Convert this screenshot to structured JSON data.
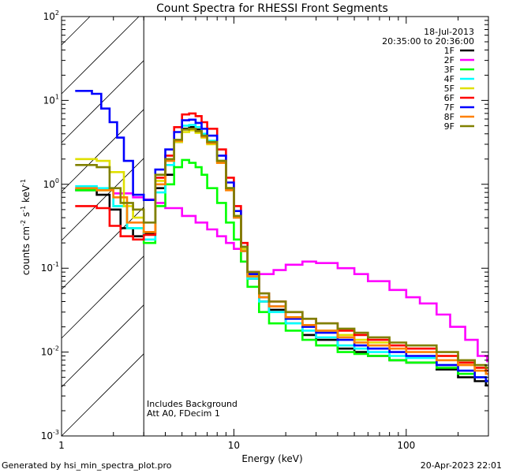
{
  "chart_data": {
    "type": "line",
    "title": "Count Spectra for RHESSI Front Segments",
    "xlabel": "Energy (keV)",
    "ylabel_parts": [
      "counts cm",
      "-2",
      " s",
      "-1",
      " keV",
      "-1"
    ],
    "xscale": "log",
    "yscale": "log",
    "xlim": [
      1,
      300
    ],
    "ylim": [
      0.001,
      100
    ],
    "x_major_ticks": [
      1,
      10,
      100
    ],
    "x_tick_labels": [
      "1",
      "10",
      "100"
    ],
    "y_major_ticks": [
      0.001,
      0.01,
      0.1,
      1,
      10,
      100
    ],
    "y_tick_labels": [
      {
        "base": "10",
        "exp": "-3"
      },
      {
        "base": "10",
        "exp": "-2"
      },
      {
        "base": "10",
        "exp": "-1"
      },
      {
        "base": "10",
        "exp": "0"
      },
      {
        "base": "10",
        "exp": "1"
      },
      {
        "base": "10",
        "exp": "2"
      }
    ],
    "date": "18-Jul-2013",
    "time_range": "20:35:00 to 20:36:00",
    "attenuator_cut_kev": 3,
    "annotations": [
      "Includes Background",
      "Att A0, FDecim 1"
    ],
    "legend_position": "top-right",
    "series": [
      {
        "name": "1F",
        "color": "#000000",
        "points": [
          [
            1.2,
            0.85
          ],
          [
            1.6,
            0.75
          ],
          [
            1.9,
            0.5
          ],
          [
            2.2,
            0.3
          ],
          [
            2.6,
            0.24
          ],
          [
            3,
            0.26
          ],
          [
            3.5,
            0.9
          ],
          [
            4,
            1.3
          ],
          [
            4.5,
            3.2
          ],
          [
            5,
            4.6
          ],
          [
            5.5,
            4.8
          ],
          [
            6,
            4.5
          ],
          [
            6.5,
            3.8
          ],
          [
            7,
            3.2
          ],
          [
            8,
            1.9
          ],
          [
            9,
            0.9
          ],
          [
            10,
            0.4
          ],
          [
            11,
            0.16
          ],
          [
            12,
            0.075
          ],
          [
            14,
            0.04
          ],
          [
            16,
            0.032
          ],
          [
            20,
            0.022
          ],
          [
            25,
            0.016
          ],
          [
            30,
            0.014
          ],
          [
            40,
            0.011
          ],
          [
            50,
            0.01
          ],
          [
            60,
            0.009
          ],
          [
            80,
            0.008
          ],
          [
            100,
            0.0075
          ],
          [
            150,
            0.0062
          ],
          [
            200,
            0.005
          ],
          [
            250,
            0.0045
          ],
          [
            290,
            0.004
          ]
        ]
      },
      {
        "name": "2F",
        "color": "#ff00ff",
        "points": [
          [
            1.2,
            0.88
          ],
          [
            1.6,
            0.87
          ],
          [
            2,
            0.78
          ],
          [
            2.6,
            0.7
          ],
          [
            3,
            0.66
          ],
          [
            3.5,
            0.6
          ],
          [
            4,
            0.52
          ],
          [
            5,
            0.42
          ],
          [
            6,
            0.35
          ],
          [
            7,
            0.29
          ],
          [
            8,
            0.24
          ],
          [
            9,
            0.2
          ],
          [
            10,
            0.17
          ],
          [
            11,
            0.12
          ],
          [
            12,
            0.09
          ],
          [
            14,
            0.085
          ],
          [
            17,
            0.095
          ],
          [
            20,
            0.11
          ],
          [
            25,
            0.12
          ],
          [
            30,
            0.115
          ],
          [
            40,
            0.1
          ],
          [
            50,
            0.085
          ],
          [
            60,
            0.07
          ],
          [
            80,
            0.055
          ],
          [
            100,
            0.045
          ],
          [
            120,
            0.038
          ],
          [
            150,
            0.028
          ],
          [
            180,
            0.02
          ],
          [
            220,
            0.014
          ],
          [
            260,
            0.009
          ],
          [
            295,
            0.0078
          ]
        ]
      },
      {
        "name": "3F",
        "color": "#00ff00",
        "points": [
          [
            1.2,
            0.85
          ],
          [
            1.6,
            0.85
          ],
          [
            2,
            0.55
          ],
          [
            2.4,
            0.3
          ],
          [
            3,
            0.2
          ],
          [
            3.5,
            0.55
          ],
          [
            4,
            1.0
          ],
          [
            4.5,
            1.6
          ],
          [
            5,
            1.95
          ],
          [
            5.5,
            1.8
          ],
          [
            6,
            1.6
          ],
          [
            6.5,
            1.3
          ],
          [
            7,
            0.9
          ],
          [
            8,
            0.6
          ],
          [
            9,
            0.35
          ],
          [
            10,
            0.22
          ],
          [
            11,
            0.12
          ],
          [
            12,
            0.06
          ],
          [
            14,
            0.03
          ],
          [
            16,
            0.022
          ],
          [
            20,
            0.018
          ],
          [
            25,
            0.014
          ],
          [
            30,
            0.012
          ],
          [
            40,
            0.01
          ],
          [
            50,
            0.0095
          ],
          [
            60,
            0.009
          ],
          [
            80,
            0.008
          ],
          [
            100,
            0.0075
          ],
          [
            150,
            0.0065
          ],
          [
            200,
            0.0055
          ],
          [
            250,
            0.005
          ],
          [
            290,
            0.0045
          ]
        ]
      },
      {
        "name": "4F",
        "color": "#00ffff",
        "points": [
          [
            1.2,
            0.95
          ],
          [
            1.6,
            0.9
          ],
          [
            2,
            0.55
          ],
          [
            2.4,
            0.3
          ],
          [
            3,
            0.22
          ],
          [
            3.5,
            0.8
          ],
          [
            4,
            1.7
          ],
          [
            4.5,
            3.4
          ],
          [
            5,
            5.0
          ],
          [
            5.5,
            5.1
          ],
          [
            6,
            4.8
          ],
          [
            6.5,
            4.0
          ],
          [
            7,
            3.3
          ],
          [
            8,
            1.9
          ],
          [
            9,
            0.9
          ],
          [
            10,
            0.4
          ],
          [
            11,
            0.16
          ],
          [
            12,
            0.075
          ],
          [
            14,
            0.04
          ],
          [
            16,
            0.03
          ],
          [
            20,
            0.022
          ],
          [
            25,
            0.018
          ],
          [
            30,
            0.015
          ],
          [
            40,
            0.012
          ],
          [
            50,
            0.011
          ],
          [
            60,
            0.01
          ],
          [
            80,
            0.009
          ],
          [
            100,
            0.0085
          ],
          [
            150,
            0.007
          ],
          [
            200,
            0.006
          ],
          [
            250,
            0.005
          ],
          [
            290,
            0.0045
          ]
        ]
      },
      {
        "name": "5F",
        "color": "#e0e000",
        "points": [
          [
            1.2,
            2.0
          ],
          [
            1.6,
            1.9
          ],
          [
            1.9,
            1.4
          ],
          [
            2.3,
            0.55
          ],
          [
            2.6,
            0.4
          ],
          [
            3,
            0.27
          ],
          [
            3.5,
            1.1
          ],
          [
            4,
            2.0
          ],
          [
            4.5,
            3.2
          ],
          [
            5,
            4.2
          ],
          [
            5.5,
            4.4
          ],
          [
            6,
            4.1
          ],
          [
            6.5,
            3.6
          ],
          [
            7,
            3.0
          ],
          [
            8,
            1.8
          ],
          [
            9,
            0.9
          ],
          [
            10,
            0.42
          ],
          [
            11,
            0.17
          ],
          [
            12,
            0.08
          ],
          [
            14,
            0.045
          ],
          [
            16,
            0.035
          ],
          [
            20,
            0.026
          ],
          [
            25,
            0.021
          ],
          [
            30,
            0.018
          ],
          [
            40,
            0.016
          ],
          [
            50,
            0.014
          ],
          [
            60,
            0.013
          ],
          [
            80,
            0.012
          ],
          [
            100,
            0.011
          ],
          [
            150,
            0.009
          ],
          [
            200,
            0.0075
          ],
          [
            250,
            0.0065
          ],
          [
            290,
            0.006
          ]
        ]
      },
      {
        "name": "6F",
        "color": "#ff0000",
        "points": [
          [
            1.2,
            0.55
          ],
          [
            1.6,
            0.52
          ],
          [
            1.9,
            0.32
          ],
          [
            2.2,
            0.24
          ],
          [
            2.6,
            0.22
          ],
          [
            3,
            0.25
          ],
          [
            3.5,
            1.2
          ],
          [
            4,
            2.2
          ],
          [
            4.5,
            4.8
          ],
          [
            5,
            6.8
          ],
          [
            5.5,
            7.0
          ],
          [
            6,
            6.5
          ],
          [
            6.5,
            5.5
          ],
          [
            7,
            4.6
          ],
          [
            8,
            2.6
          ],
          [
            9,
            1.2
          ],
          [
            10,
            0.55
          ],
          [
            11,
            0.2
          ],
          [
            12,
            0.09
          ],
          [
            14,
            0.05
          ],
          [
            16,
            0.04
          ],
          [
            20,
            0.03
          ],
          [
            25,
            0.025
          ],
          [
            30,
            0.022
          ],
          [
            40,
            0.018
          ],
          [
            50,
            0.016
          ],
          [
            60,
            0.014
          ],
          [
            80,
            0.012
          ],
          [
            100,
            0.011
          ],
          [
            150,
            0.009
          ],
          [
            200,
            0.0075
          ],
          [
            250,
            0.0065
          ],
          [
            290,
            0.006
          ]
        ]
      },
      {
        "name": "7F",
        "color": "#0000ff",
        "points": [
          [
            1.2,
            13
          ],
          [
            1.5,
            12
          ],
          [
            1.7,
            8
          ],
          [
            1.9,
            5.5
          ],
          [
            2.1,
            3.6
          ],
          [
            2.3,
            1.9
          ],
          [
            2.6,
            0.75
          ],
          [
            3,
            0.65
          ],
          [
            3.5,
            1.5
          ],
          [
            4,
            2.6
          ],
          [
            4.5,
            4.2
          ],
          [
            5,
            5.8
          ],
          [
            5.5,
            5.9
          ],
          [
            6,
            5.4
          ],
          [
            6.5,
            4.6
          ],
          [
            7,
            3.8
          ],
          [
            8,
            2.2
          ],
          [
            9,
            1.05
          ],
          [
            10,
            0.48
          ],
          [
            11,
            0.18
          ],
          [
            12,
            0.085
          ],
          [
            14,
            0.045
          ],
          [
            16,
            0.035
          ],
          [
            20,
            0.025
          ],
          [
            25,
            0.02
          ],
          [
            30,
            0.017
          ],
          [
            40,
            0.014
          ],
          [
            50,
            0.012
          ],
          [
            60,
            0.011
          ],
          [
            80,
            0.01
          ],
          [
            100,
            0.009
          ],
          [
            150,
            0.007
          ],
          [
            200,
            0.006
          ],
          [
            250,
            0.005
          ],
          [
            290,
            0.0045
          ]
        ]
      },
      {
        "name": "8F",
        "color": "#ff8000",
        "points": [
          [
            1.2,
            0.9
          ],
          [
            1.6,
            0.85
          ],
          [
            2,
            0.7
          ],
          [
            2.4,
            0.35
          ],
          [
            3,
            0.27
          ],
          [
            3.5,
            1.0
          ],
          [
            4,
            1.9
          ],
          [
            4.5,
            3.3
          ],
          [
            5,
            4.5
          ],
          [
            5.5,
            4.6
          ],
          [
            6,
            4.3
          ],
          [
            6.5,
            3.7
          ],
          [
            7,
            3.1
          ],
          [
            8,
            1.8
          ],
          [
            9,
            0.85
          ],
          [
            10,
            0.4
          ],
          [
            11,
            0.16
          ],
          [
            12,
            0.08
          ],
          [
            14,
            0.045
          ],
          [
            16,
            0.035
          ],
          [
            20,
            0.026
          ],
          [
            25,
            0.021
          ],
          [
            30,
            0.018
          ],
          [
            40,
            0.015
          ],
          [
            50,
            0.013
          ],
          [
            60,
            0.012
          ],
          [
            80,
            0.011
          ],
          [
            100,
            0.01
          ],
          [
            150,
            0.008
          ],
          [
            200,
            0.007
          ],
          [
            250,
            0.006
          ],
          [
            290,
            0.0055
          ]
        ]
      },
      {
        "name": "9F",
        "color": "#808000",
        "points": [
          [
            1.2,
            1.7
          ],
          [
            1.6,
            1.6
          ],
          [
            1.9,
            0.9
          ],
          [
            2.2,
            0.6
          ],
          [
            2.6,
            0.5
          ],
          [
            3,
            0.35
          ],
          [
            3.5,
            1.3
          ],
          [
            4,
            2.0
          ],
          [
            4.5,
            3.4
          ],
          [
            5,
            4.5
          ],
          [
            5.5,
            4.6
          ],
          [
            6,
            4.3
          ],
          [
            6.5,
            3.8
          ],
          [
            7,
            3.2
          ],
          [
            8,
            1.9
          ],
          [
            9,
            0.9
          ],
          [
            10,
            0.42
          ],
          [
            11,
            0.18
          ],
          [
            12,
            0.09
          ],
          [
            14,
            0.05
          ],
          [
            16,
            0.04
          ],
          [
            20,
            0.03
          ],
          [
            25,
            0.025
          ],
          [
            30,
            0.022
          ],
          [
            40,
            0.019
          ],
          [
            50,
            0.017
          ],
          [
            60,
            0.015
          ],
          [
            80,
            0.013
          ],
          [
            100,
            0.012
          ],
          [
            150,
            0.01
          ],
          [
            200,
            0.008
          ],
          [
            250,
            0.007
          ],
          [
            290,
            0.0065
          ]
        ]
      }
    ]
  },
  "footer": {
    "generated_by": "Generated by hsi_min_spectra_plot.pro",
    "generated_at": "20-Apr-2023 22:01"
  }
}
